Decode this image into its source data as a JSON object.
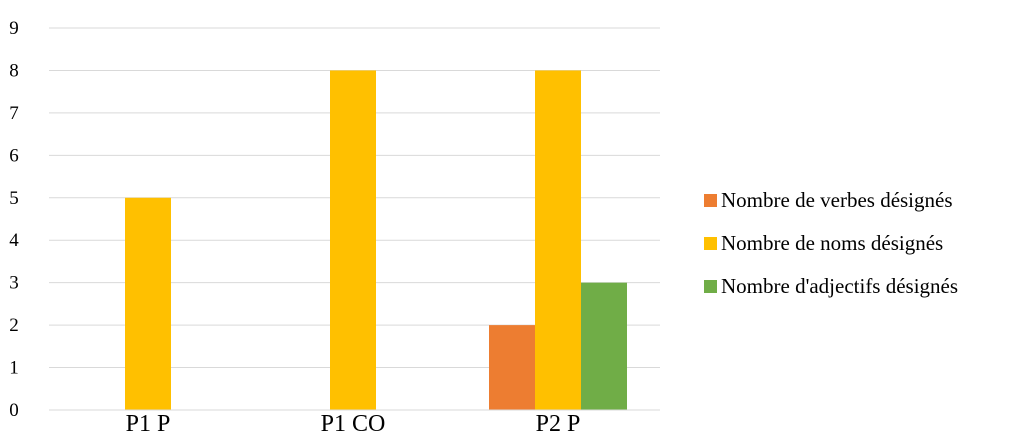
{
  "chart_data": {
    "type": "bar",
    "title": "",
    "xlabel": "",
    "ylabel": "",
    "categories": [
      "P1 P",
      "P1 CO",
      "P2 P"
    ],
    "series": [
      {
        "name": "Nombre de verbes désignés",
        "values": [
          0,
          0,
          2
        ],
        "color": "#ED7D31"
      },
      {
        "name": "Nombre de noms désignés",
        "values": [
          5,
          8,
          8
        ],
        "color": "#FFC000"
      },
      {
        "name": "Nombre d'adjectifs désignés",
        "values": [
          0,
          0,
          3
        ],
        "color": "#70AD47"
      }
    ],
    "ylim": [
      0,
      9
    ],
    "yticks": [
      "0",
      "1",
      "2",
      "3",
      "4",
      "5",
      "6",
      "7",
      "8",
      "9"
    ],
    "grid": true,
    "legend_position": "right",
    "gridline_color": "#D9D9D9"
  }
}
